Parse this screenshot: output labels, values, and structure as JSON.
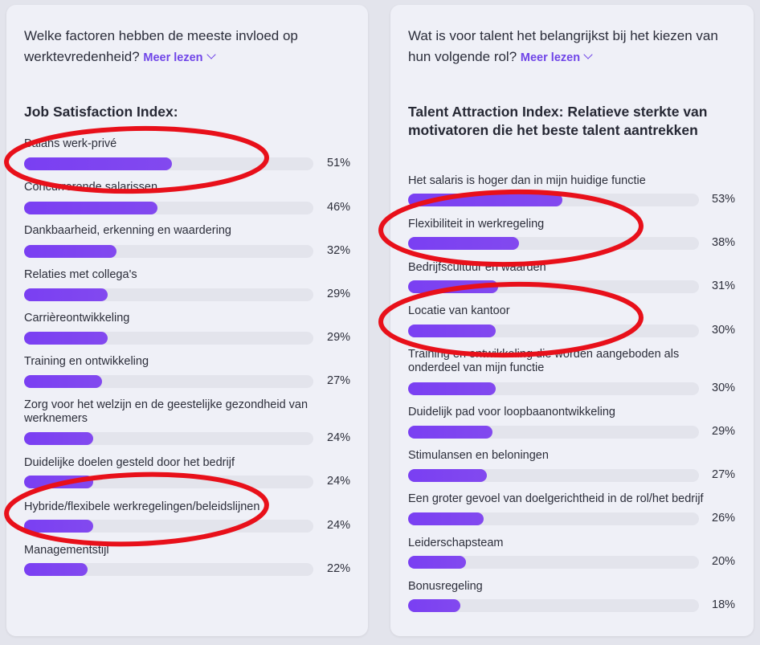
{
  "chart_data": [
    {
      "type": "bar",
      "intro": "Welke factoren hebben de meeste invloed op werktevredenheid?",
      "more_label": "Meer lezen",
      "title": "Job Satisfaction Index:",
      "categories": [
        "Balans werk-privé",
        "Concurrerende salarissen",
        "Dankbaarheid, erkenning en waardering",
        "Relaties met collega's",
        "Carrièreontwikkeling",
        "Training en ontwikkeling",
        "Zorg voor het welzijn en de geestelijke gezondheid van werknemers",
        "Duidelijke doelen gesteld door het bedrijf",
        "Hybride/flexibele werkregelingen/beleidslijnen",
        "Managementstijl"
      ],
      "values": [
        51,
        46,
        32,
        29,
        29,
        27,
        24,
        24,
        24,
        22
      ],
      "value_labels": [
        "51%",
        "46%",
        "32%",
        "29%",
        "29%",
        "27%",
        "24%",
        "24%",
        "24%",
        "22%"
      ],
      "ylim": [
        0,
        100
      ]
    },
    {
      "type": "bar",
      "intro": "Wat is voor talent het belangrijkst bij het kiezen van hun volgende rol?",
      "more_label": "Meer lezen",
      "title": "Talent Attraction Index: Relatieve sterkte van motivatoren die het beste talent aantrekken",
      "categories": [
        "Het salaris is hoger dan in mijn huidige functie",
        "Flexibiliteit in werkregeling",
        "Bedrijfscultuur en waarden",
        "Locatie van kantoor",
        "Training en ontwikkeling die worden aangeboden als onderdeel van mijn functie",
        "Duidelijk pad voor loopbaanontwikkeling",
        "Stimulansen en beloningen",
        "Een groter gevoel van doelgerichtheid in de rol/het bedrijf",
        "Leiderschapsteam",
        "Bonusregeling"
      ],
      "values": [
        53,
        38,
        31,
        30,
        30,
        29,
        27,
        26,
        20,
        18
      ],
      "value_labels": [
        "53%",
        "38%",
        "31%",
        "30%",
        "30%",
        "29%",
        "27%",
        "26%",
        "20%",
        "18%"
      ],
      "ylim": [
        0,
        100
      ]
    }
  ],
  "colors": {
    "bar": "#7a3ff2",
    "track": "#e3e4ec",
    "link": "#6f44e8",
    "highlight": "#e8101a"
  },
  "highlights": [
    "Balans werk-privé",
    "Hybride/flexibele werkregelingen/beleidslijnen",
    "Flexibiliteit in werkregeling",
    "Locatie van kantoor"
  ]
}
